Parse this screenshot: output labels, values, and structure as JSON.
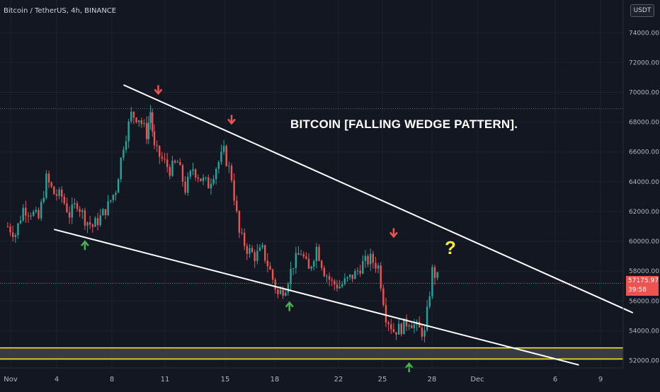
{
  "chart_data": {
    "type": "candlestick",
    "title": "Bitcoin / TetherUS, 4h, BINANCE",
    "annotation": "BITCOIN [FALLING WEDGE PATTERN].",
    "question_mark": "?",
    "currency": "USDT",
    "ylim": [
      51500,
      76200
    ],
    "y_ticks": [
      "52000.00",
      "54000.00",
      "56000.00",
      "58000.00",
      "60000.00",
      "62000.00",
      "64000.00",
      "66000.00",
      "68000.00",
      "70000.00",
      "72000.00",
      "74000.00"
    ],
    "x_ticks": [
      "Nov",
      "4",
      "8",
      "11",
      "15",
      "18",
      "22",
      "25",
      "28",
      "Dec",
      "6",
      "9"
    ],
    "last_price": "57175.97",
    "countdown": "39:58",
    "grid": true,
    "colors": {
      "up": "#26a69a",
      "down": "#ef5350",
      "trendline": "#ffffff",
      "support_band": "#ffff00",
      "label": "#ffffff",
      "question": "#ffeb3b",
      "bg": "#131722"
    },
    "candles_trace": [
      [
        1,
        61000
      ],
      [
        2,
        60500
      ],
      [
        3,
        62200
      ],
      [
        4,
        62000
      ],
      [
        5,
        61500
      ],
      [
        6,
        64200
      ],
      [
        7,
        63200
      ],
      [
        8,
        63000
      ],
      [
        9,
        61800
      ],
      [
        10,
        62600
      ],
      [
        11,
        61500
      ],
      [
        12,
        61000
      ],
      [
        13,
        61600
      ],
      [
        14,
        62400
      ],
      [
        15,
        63500
      ],
      [
        16,
        66500
      ],
      [
        17,
        68500
      ],
      [
        18,
        68300
      ],
      [
        19,
        67200
      ],
      [
        19.5,
        68700
      ],
      [
        20,
        66200
      ],
      [
        21,
        65500
      ],
      [
        22,
        64800
      ],
      [
        23,
        65300
      ],
      [
        24,
        63500
      ],
      [
        25,
        64900
      ],
      [
        26,
        64200
      ],
      [
        27,
        63800
      ],
      [
        28,
        65000
      ],
      [
        29,
        66000
      ],
      [
        30,
        64300
      ],
      [
        31,
        60500
      ],
      [
        32,
        59500
      ],
      [
        33,
        59000
      ],
      [
        34,
        59400
      ],
      [
        35,
        58000
      ],
      [
        36,
        56400
      ],
      [
        37,
        57000
      ],
      [
        38,
        58500
      ],
      [
        39,
        59300
      ],
      [
        40,
        58000
      ],
      [
        41,
        59600
      ],
      [
        42,
        58000
      ],
      [
        43,
        57200
      ],
      [
        44,
        57000
      ],
      [
        45,
        57400
      ],
      [
        46,
        57800
      ],
      [
        47,
        58500
      ],
      [
        48,
        58800
      ],
      [
        49,
        58300
      ],
      [
        50,
        55000
      ],
      [
        51,
        54000
      ],
      [
        52,
        54200
      ],
      [
        53,
        54700
      ],
      [
        54,
        54200
      ],
      [
        55,
        53800
      ],
      [
        56,
        58000
      ],
      [
        57,
        57300
      ]
    ],
    "trendlines": [
      {
        "name": "upper",
        "from": [
          16,
          70500
        ],
        "to": [
          82,
          55200
        ]
      },
      {
        "name": "lower",
        "from": [
          7,
          60800
        ],
        "to": [
          75,
          51700
        ]
      }
    ],
    "arrows": [
      {
        "dir": "down",
        "x": 20.5,
        "y": 70200
      },
      {
        "dir": "down",
        "x": 30,
        "y": 68200
      },
      {
        "dir": "down",
        "x": 51,
        "y": 60600
      },
      {
        "dir": "up",
        "x": 11,
        "y": 59700
      },
      {
        "dir": "up",
        "x": 37.5,
        "y": 55600
      },
      {
        "dir": "up",
        "x": 53,
        "y": 51500
      }
    ]
  }
}
